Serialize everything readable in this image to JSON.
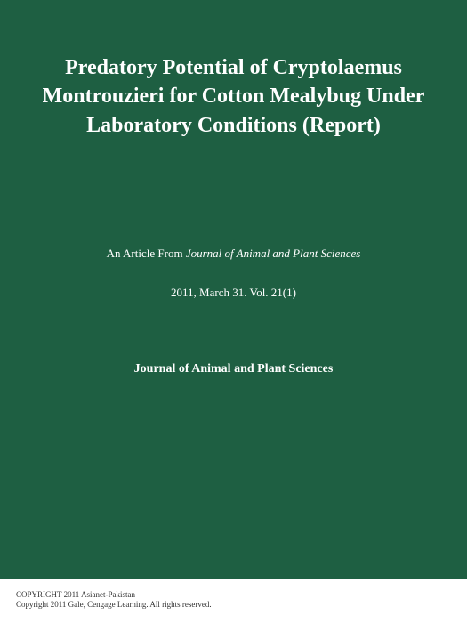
{
  "cover": {
    "background_color": "#1e5f42",
    "title": {
      "text": "Predatory Potential of Cryptolaemus Montrouzieri for Cotton Mealybug Under Laboratory Conditions (Report)",
      "fontsize": 24,
      "color": "#ffffff"
    },
    "article_from": {
      "prefix": "An Article From ",
      "journal": "Journal of Animal and Plant Sciences",
      "fontsize": 13,
      "color": "#ffffff"
    },
    "date_vol": {
      "text": "2011, March 31. Vol. 21(1)",
      "fontsize": 13,
      "color": "#ffffff"
    },
    "publisher": {
      "text": "Journal of Animal and Plant Sciences",
      "fontsize": 14,
      "color": "#ffffff"
    }
  },
  "footer": {
    "background_color": "#ffffff",
    "copyright1": "COPYRIGHT 2011 Asianet-Pakistan",
    "copyright2": "Copyright 2011 Gale, Cengage Learning. All rights reserved.",
    "fontsize": 9,
    "color": "#333333"
  }
}
